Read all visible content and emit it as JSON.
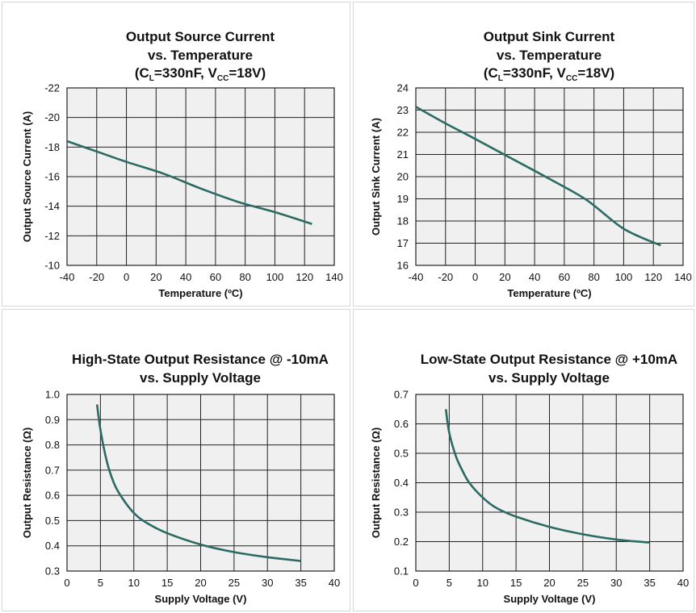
{
  "colors": {
    "curve": "#2b6b63",
    "plot_bg": "#f0f0f0",
    "grid": "#222222"
  },
  "chart_data": [
    {
      "type": "line",
      "title": [
        "Output Source Current",
        "vs. Temperature"
      ],
      "title_cond": {
        "open": "(C",
        "sub1": "L",
        "mid": "=330nF, V",
        "sub2": "CC",
        "close": "=18V)"
      },
      "xlabel": "Temperature (ºC)",
      "ylabel": "Output Source Current (A)",
      "xlim": [
        -40,
        140
      ],
      "ylim": [
        -10,
        -22
      ],
      "xticks": [
        -40,
        -20,
        0,
        20,
        40,
        60,
        80,
        100,
        120,
        140
      ],
      "yticks": [
        -22,
        -20,
        -18,
        -16,
        -14,
        -12,
        -10
      ],
      "grid": true,
      "x": [
        -40,
        -20,
        0,
        25,
        50,
        75,
        100,
        125
      ],
      "y": [
        -18.4,
        -17.7,
        -17.0,
        -16.2,
        -15.2,
        -14.3,
        -13.6,
        -12.8
      ]
    },
    {
      "type": "line",
      "title": [
        "Output Sink Current",
        "vs. Temperature"
      ],
      "title_cond": {
        "open": "(C",
        "sub1": "L",
        "mid": "=330nF, V",
        "sub2": "CC",
        "close": "=18V)"
      },
      "xlabel": "Temperature (ºC)",
      "ylabel": "Output Sink Current (A)",
      "xlim": [
        -40,
        140
      ],
      "ylim": [
        16,
        24
      ],
      "xticks": [
        -40,
        -20,
        0,
        20,
        40,
        60,
        80,
        100,
        120,
        140
      ],
      "yticks": [
        24,
        23,
        22,
        21,
        20,
        19,
        18,
        17,
        16
      ],
      "grid": true,
      "x": [
        -40,
        -20,
        0,
        25,
        50,
        75,
        100,
        125
      ],
      "y": [
        23.15,
        22.4,
        21.7,
        20.8,
        19.9,
        18.95,
        17.65,
        16.9
      ]
    },
    {
      "type": "line",
      "title": [
        "High-State Output Resistance @ -10mA",
        "vs. Supply Voltage"
      ],
      "xlabel": "Supply Voltage (V)",
      "ylabel": "Output Resistance (Ω)",
      "xlim": [
        0,
        40
      ],
      "ylim": [
        0.3,
        1.0
      ],
      "xticks": [
        0,
        5,
        10,
        15,
        20,
        25,
        30,
        35,
        40
      ],
      "yticks": [
        1.0,
        0.9,
        0.8,
        0.7,
        0.6,
        0.5,
        0.4,
        0.3
      ],
      "yticklabels": [
        "1.0",
        "0.9",
        "0.8",
        "0.7",
        "0.6",
        "0.5",
        "0.4",
        "0.3"
      ],
      "grid": true,
      "x": [
        4.5,
        5,
        6,
        7,
        8,
        10,
        12,
        15,
        20,
        25,
        30,
        35
      ],
      "y": [
        0.96,
        0.86,
        0.73,
        0.65,
        0.6,
        0.53,
        0.49,
        0.45,
        0.405,
        0.375,
        0.355,
        0.34
      ]
    },
    {
      "type": "line",
      "title": [
        "Low-State Output Resistance @ +10mA",
        "vs. Supply Voltage"
      ],
      "xlabel": "Supply Voltage (V)",
      "ylabel": "Output Resistance (Ω)",
      "xlim": [
        0,
        40
      ],
      "ylim": [
        0.1,
        0.7
      ],
      "xticks": [
        0,
        5,
        10,
        15,
        20,
        25,
        30,
        35,
        40
      ],
      "yticks": [
        0.7,
        0.6,
        0.5,
        0.4,
        0.3,
        0.2,
        0.1
      ],
      "yticklabels": [
        "0.7",
        "0.6",
        "0.5",
        "0.4",
        "0.3",
        "0.2",
        "0.1"
      ],
      "grid": true,
      "x": [
        4.5,
        5,
        6,
        7,
        8,
        10,
        12,
        15,
        20,
        25,
        30,
        35
      ],
      "y": [
        0.65,
        0.57,
        0.49,
        0.44,
        0.4,
        0.35,
        0.315,
        0.285,
        0.25,
        0.225,
        0.207,
        0.197
      ]
    }
  ]
}
